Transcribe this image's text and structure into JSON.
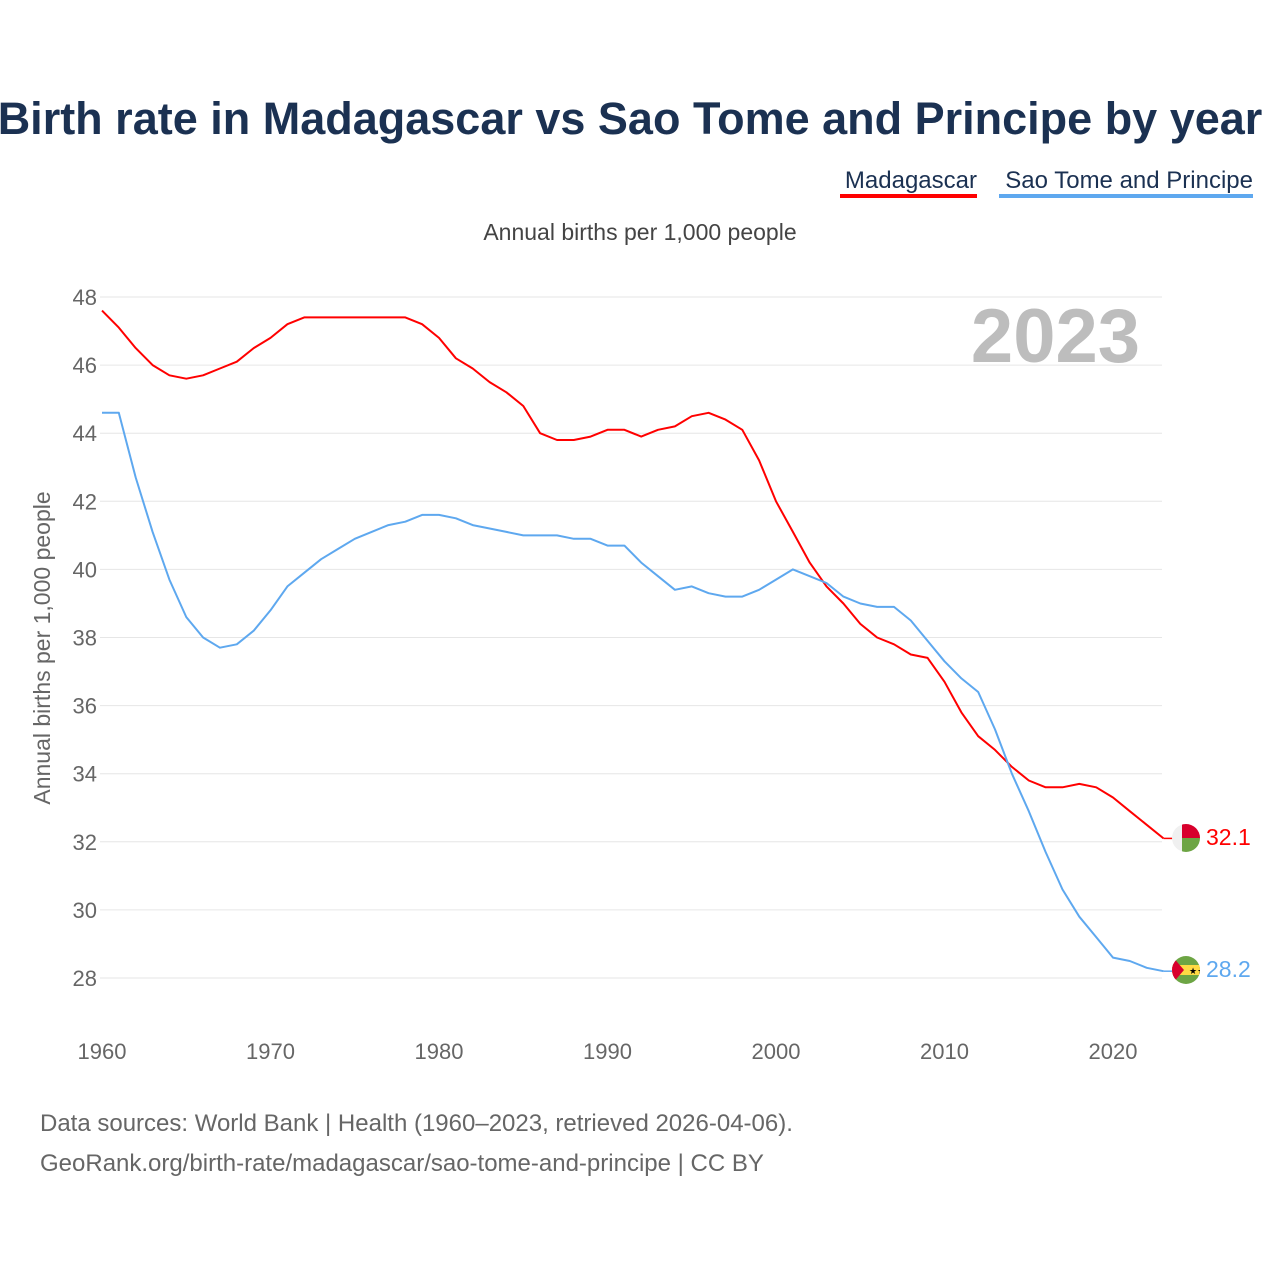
{
  "chart_data": {
    "type": "line",
    "title": "Birth rate in Madagascar vs Sao Tome and Principe by year",
    "subtitle": "Annual births per 1,000 people",
    "xlabel": "",
    "ylabel": "Annual births per 1,000 people",
    "xlim": [
      1960,
      2023
    ],
    "ylim": [
      27,
      48.5
    ],
    "x_ticks": [
      1960,
      1970,
      1980,
      1990,
      2000,
      2010,
      2020
    ],
    "y_ticks": [
      28,
      30,
      32,
      34,
      36,
      38,
      40,
      42,
      44,
      46,
      48
    ],
    "grid": true,
    "legend_position": "top-right",
    "year_watermark": "2023",
    "x_start": 1960,
    "series": [
      {
        "name": "Madagascar",
        "color": "#ff0000",
        "end_label": "32.1",
        "values": [
          47.6,
          47.1,
          46.5,
          46.0,
          45.7,
          45.6,
          45.7,
          45.9,
          46.1,
          46.5,
          46.8,
          47.2,
          47.4,
          47.4,
          47.4,
          47.4,
          47.4,
          47.4,
          47.4,
          47.2,
          46.8,
          46.2,
          45.9,
          45.5,
          45.2,
          44.8,
          44.0,
          43.8,
          43.8,
          43.9,
          44.1,
          44.1,
          43.9,
          44.1,
          44.2,
          44.5,
          44.6,
          44.4,
          44.1,
          43.2,
          42.0,
          41.1,
          40.2,
          39.5,
          39.0,
          38.4,
          38.0,
          37.8,
          37.5,
          37.4,
          36.7,
          35.8,
          35.1,
          34.7,
          34.2,
          33.8,
          33.6,
          33.6,
          33.7,
          33.6,
          33.3,
          32.9,
          32.5,
          32.1
        ]
      },
      {
        "name": "Sao Tome and Principe",
        "color": "#5ea8ef",
        "end_label": "28.2",
        "values": [
          44.6,
          44.6,
          42.7,
          41.1,
          39.7,
          38.6,
          38.0,
          37.7,
          37.8,
          38.2,
          38.8,
          39.5,
          39.9,
          40.3,
          40.6,
          40.9,
          41.1,
          41.3,
          41.4,
          41.6,
          41.6,
          41.5,
          41.3,
          41.2,
          41.1,
          41.0,
          41.0,
          41.0,
          40.9,
          40.9,
          40.7,
          40.7,
          40.2,
          39.8,
          39.4,
          39.5,
          39.3,
          39.2,
          39.2,
          39.4,
          39.7,
          40.0,
          39.8,
          39.6,
          39.2,
          39.0,
          38.9,
          38.9,
          38.5,
          37.9,
          37.3,
          36.8,
          36.4,
          35.3,
          34.0,
          32.9,
          31.7,
          30.6,
          29.8,
          29.2,
          28.6,
          28.5,
          28.3,
          28.2
        ]
      }
    ]
  },
  "footer": {
    "line1": "Data sources: World Bank | Health (1960–2023, retrieved 2026-04-06).",
    "line2": "GeoRank.org/birth-rate/madagascar/sao-tome-and-principe | CC BY"
  }
}
